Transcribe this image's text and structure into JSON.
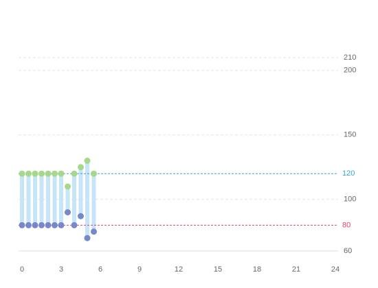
{
  "chart_data": {
    "type": "range",
    "x": [
      0,
      0.5,
      1,
      1.5,
      2,
      2.5,
      3,
      3.5,
      4,
      4.5,
      5,
      5.5
    ],
    "series": [
      {
        "color": "#a5d88b",
        "values": [
          120,
          120,
          120,
          120,
          120,
          120,
          120,
          110,
          120,
          125,
          130,
          120
        ]
      },
      {
        "color": "#7787c9",
        "values": [
          80,
          80,
          80,
          80,
          80,
          80,
          80,
          90,
          80,
          87,
          70,
          75
        ]
      }
    ],
    "bar_color": "#c7e5f8",
    "xlim": [
      0,
      24
    ],
    "xticks": [
      0,
      3,
      6,
      9,
      12,
      15,
      18,
      21,
      24
    ],
    "ylim": [
      60,
      210
    ],
    "yticks": [
      60,
      100,
      150,
      200,
      210
    ],
    "reference_lines": [
      {
        "value": 120,
        "color": "#33a3dc"
      },
      {
        "value": 80,
        "color": "#d9456e"
      }
    ],
    "grid": true
  }
}
